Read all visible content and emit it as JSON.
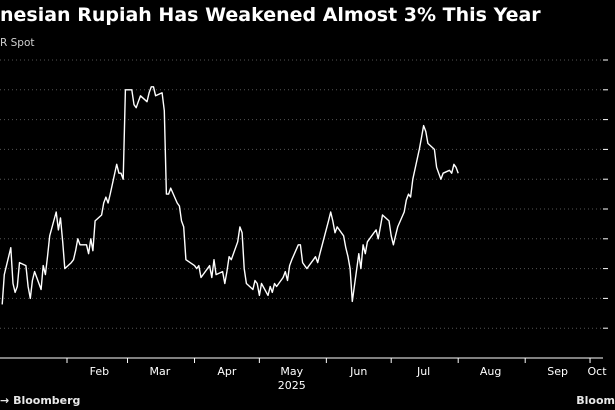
{
  "title": "nesian Rupiah Has Weakened Almost 3% This Year",
  "subtitle": "R Spot",
  "source_left": "Bloomberg",
  "source_left_prefix": "→",
  "source_right": "Bloom",
  "colors": {
    "background": "#000000",
    "line": "#ffffff",
    "text": "#ffffff",
    "grid": "#555555"
  },
  "chart_data": {
    "type": "line",
    "title": "nesian Rupiah Has Weakened Almost 3% This Year",
    "subtitle": "R Spot",
    "xlabel": "",
    "ylabel": "",
    "x_tick_labels": [
      "Feb",
      "Mar",
      "Apr",
      "May",
      "Jun",
      "Jul",
      "Aug",
      "Sep",
      "Oct"
    ],
    "x_tick_dates": [
      "2025-02-01",
      "2025-03-01",
      "2025-04-01",
      "2025-05-01",
      "2025-06-01",
      "2025-07-01",
      "2025-08-01",
      "2025-09-01",
      "2025-10-01"
    ],
    "x_year_label": "2025",
    "grid": "horizontal dotted",
    "ylim": [
      16000,
      17000
    ],
    "series": [
      {
        "points": [
          [
            "2025-01-02",
            16180
          ],
          [
            "2025-01-03",
            16280
          ],
          [
            "2025-01-06",
            16370
          ],
          [
            "2025-01-07",
            16250
          ],
          [
            "2025-01-08",
            16220
          ],
          [
            "2025-01-09",
            16240
          ],
          [
            "2025-01-10",
            16320
          ],
          [
            "2025-01-13",
            16310
          ],
          [
            "2025-01-14",
            16240
          ],
          [
            "2025-01-15",
            16200
          ],
          [
            "2025-01-16",
            16260
          ],
          [
            "2025-01-17",
            16290
          ],
          [
            "2025-01-20",
            16230
          ],
          [
            "2025-01-21",
            16310
          ],
          [
            "2025-01-22",
            16280
          ],
          [
            "2025-01-23",
            16340
          ],
          [
            "2025-01-24",
            16410
          ],
          [
            "2025-01-27",
            16490
          ],
          [
            "2025-01-28",
            16430
          ],
          [
            "2025-01-29",
            16470
          ],
          [
            "2025-01-30",
            16390
          ],
          [
            "2025-01-31",
            16300
          ],
          [
            "2025-02-03",
            16320
          ],
          [
            "2025-02-04",
            16330
          ],
          [
            "2025-02-05",
            16360
          ],
          [
            "2025-02-06",
            16400
          ],
          [
            "2025-02-07",
            16380
          ],
          [
            "2025-02-10",
            16380
          ],
          [
            "2025-02-11",
            16350
          ],
          [
            "2025-02-12",
            16400
          ],
          [
            "2025-02-13",
            16360
          ],
          [
            "2025-02-14",
            16460
          ],
          [
            "2025-02-17",
            16480
          ],
          [
            "2025-02-18",
            16520
          ],
          [
            "2025-02-19",
            16540
          ],
          [
            "2025-02-20",
            16520
          ],
          [
            "2025-02-21",
            16550
          ],
          [
            "2025-02-24",
            16650
          ],
          [
            "2025-02-25",
            16620
          ],
          [
            "2025-02-26",
            16620
          ],
          [
            "2025-02-27",
            16600
          ],
          [
            "2025-02-28",
            16900
          ],
          [
            "2025-03-03",
            16900
          ],
          [
            "2025-03-04",
            16850
          ],
          [
            "2025-03-05",
            16840
          ],
          [
            "2025-03-06",
            16860
          ],
          [
            "2025-03-07",
            16880
          ],
          [
            "2025-03-10",
            16860
          ],
          [
            "2025-03-11",
            16890
          ],
          [
            "2025-03-12",
            16910
          ],
          [
            "2025-03-13",
            16910
          ],
          [
            "2025-03-14",
            16880
          ],
          [
            "2025-03-17",
            16890
          ],
          [
            "2025-03-18",
            16830
          ],
          [
            "2025-03-19",
            16550
          ],
          [
            "2025-03-20",
            16550
          ],
          [
            "2025-03-21",
            16570
          ],
          [
            "2025-03-24",
            16520
          ],
          [
            "2025-03-25",
            16510
          ],
          [
            "2025-03-26",
            16460
          ],
          [
            "2025-03-27",
            16440
          ],
          [
            "2025-03-28",
            16330
          ],
          [
            "2025-04-01",
            16310
          ],
          [
            "2025-04-02",
            16300
          ],
          [
            "2025-04-03",
            16310
          ],
          [
            "2025-04-04",
            16270
          ],
          [
            "2025-04-07",
            16300
          ],
          [
            "2025-04-08",
            16310
          ],
          [
            "2025-04-09",
            16270
          ],
          [
            "2025-04-10",
            16330
          ],
          [
            "2025-04-11",
            16280
          ],
          [
            "2025-04-14",
            16290
          ],
          [
            "2025-04-15",
            16250
          ],
          [
            "2025-04-16",
            16290
          ],
          [
            "2025-04-17",
            16340
          ],
          [
            "2025-04-18",
            16330
          ],
          [
            "2025-04-21",
            16390
          ],
          [
            "2025-04-22",
            16440
          ],
          [
            "2025-04-23",
            16420
          ],
          [
            "2025-04-24",
            16300
          ],
          [
            "2025-04-25",
            16250
          ],
          [
            "2025-04-28",
            16230
          ],
          [
            "2025-04-29",
            16260
          ],
          [
            "2025-04-30",
            16250
          ],
          [
            "2025-05-01",
            16210
          ],
          [
            "2025-05-02",
            16250
          ],
          [
            "2025-05-05",
            16210
          ],
          [
            "2025-05-06",
            16240
          ],
          [
            "2025-05-07",
            16220
          ],
          [
            "2025-05-08",
            16250
          ],
          [
            "2025-05-09",
            16240
          ],
          [
            "2025-05-12",
            16270
          ],
          [
            "2025-05-13",
            16290
          ],
          [
            "2025-05-14",
            16260
          ],
          [
            "2025-05-15",
            16310
          ],
          [
            "2025-05-16",
            16330
          ],
          [
            "2025-05-19",
            16380
          ],
          [
            "2025-05-20",
            16380
          ],
          [
            "2025-05-21",
            16320
          ],
          [
            "2025-05-22",
            16310
          ],
          [
            "2025-05-23",
            16300
          ],
          [
            "2025-05-26",
            16330
          ],
          [
            "2025-05-27",
            16340
          ],
          [
            "2025-05-28",
            16320
          ],
          [
            "2025-05-29",
            16350
          ],
          [
            "2025-06-02",
            16460
          ],
          [
            "2025-06-03",
            16490
          ],
          [
            "2025-06-04",
            16460
          ],
          [
            "2025-06-05",
            16420
          ],
          [
            "2025-06-06",
            16440
          ],
          [
            "2025-06-09",
            16410
          ],
          [
            "2025-06-10",
            16370
          ],
          [
            "2025-06-11",
            16340
          ],
          [
            "2025-06-12",
            16300
          ],
          [
            "2025-06-13",
            16190
          ],
          [
            "2025-06-16",
            16350
          ],
          [
            "2025-06-17",
            16300
          ],
          [
            "2025-06-18",
            16380
          ],
          [
            "2025-06-19",
            16350
          ],
          [
            "2025-06-20",
            16390
          ],
          [
            "2025-06-23",
            16420
          ],
          [
            "2025-06-24",
            16430
          ],
          [
            "2025-06-25",
            16400
          ],
          [
            "2025-06-26",
            16440
          ],
          [
            "2025-06-27",
            16480
          ],
          [
            "2025-06-30",
            16460
          ],
          [
            "2025-07-01",
            16410
          ],
          [
            "2025-07-02",
            16380
          ],
          [
            "2025-07-03",
            16410
          ],
          [
            "2025-07-04",
            16440
          ],
          [
            "2025-07-07",
            16490
          ],
          [
            "2025-07-08",
            16530
          ],
          [
            "2025-07-09",
            16550
          ],
          [
            "2025-07-10",
            16540
          ],
          [
            "2025-07-11",
            16600
          ],
          [
            "2025-07-14",
            16700
          ],
          [
            "2025-07-15",
            16740
          ],
          [
            "2025-07-16",
            16780
          ],
          [
            "2025-07-17",
            16760
          ],
          [
            "2025-07-18",
            16720
          ],
          [
            "2025-07-21",
            16700
          ],
          [
            "2025-07-22",
            16640
          ],
          [
            "2025-07-23",
            16620
          ],
          [
            "2025-07-24",
            16600
          ],
          [
            "2025-07-25",
            16620
          ],
          [
            "2025-07-28",
            16630
          ],
          [
            "2025-07-29",
            16620
          ],
          [
            "2025-07-30",
            16650
          ],
          [
            "2025-07-31",
            16640
          ],
          [
            "2025-08-01",
            16620
          ]
        ]
      }
    ]
  }
}
